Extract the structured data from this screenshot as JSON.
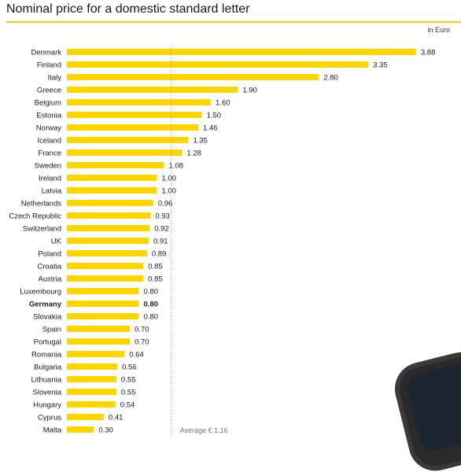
{
  "header": {
    "title": "Nominal price for a domestic standard letter",
    "unit": "in Euro"
  },
  "chart_data": {
    "type": "bar",
    "orientation": "horizontal",
    "title": "Nominal price for a domestic standard letter",
    "xlabel": "in Euro",
    "bar_color": "#ffd500",
    "highlight": "Germany",
    "average": {
      "value": 1.16,
      "label": "Average € 1.16"
    },
    "categories": [
      "Denmark",
      "Finland",
      "Italy",
      "Greece",
      "Belgium",
      "Estonia",
      "Norway",
      "Iceland",
      "France",
      "Sweden",
      "Ireland",
      "Latvia",
      "Netherlands",
      "Czech Republic",
      "Switzerland",
      "UK",
      "Poland",
      "Croatia",
      "Austria",
      "Luxembourg",
      "Germany",
      "Slovakia",
      "Spain",
      "Portugal",
      "Romania",
      "Bulgaria",
      "Lithuania",
      "Slovenia",
      "Hungary",
      "Cyprus",
      "Malta"
    ],
    "values": [
      3.88,
      3.35,
      2.8,
      1.9,
      1.6,
      1.5,
      1.46,
      1.35,
      1.28,
      1.08,
      1.0,
      1.0,
      0.96,
      0.93,
      0.92,
      0.91,
      0.89,
      0.85,
      0.85,
      0.8,
      0.8,
      0.8,
      0.7,
      0.7,
      0.64,
      0.56,
      0.55,
      0.55,
      0.54,
      0.41,
      0.3
    ],
    "labels": [
      "3.88",
      "3.35",
      "2.80",
      "1.90",
      "1.60",
      "1.50",
      "1.46",
      "1.35",
      "1.28",
      "1.08",
      "1.00",
      "1.00",
      "0.96",
      "0.93",
      "0.92",
      "0.91",
      "0.89",
      "0.85",
      "0.85",
      "0.80",
      "0.80",
      "0.80",
      "0.70",
      "0.70",
      "0.64",
      "0.56",
      "0.55",
      "0.55",
      "0.54",
      "0.41",
      "0.30"
    ]
  }
}
